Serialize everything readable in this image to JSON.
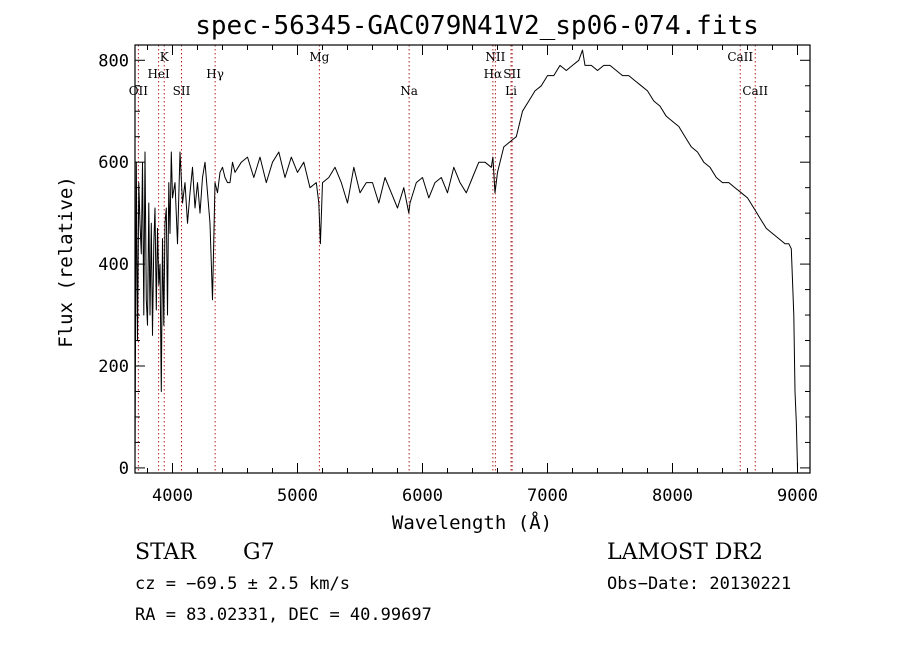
{
  "chart_data": {
    "type": "line",
    "title": "spec-56345-GAC079N41V2_sp06-074.fits",
    "xlabel": "Wavelength (Å)",
    "ylabel": "Flux (relative)",
    "xlim": [
      3700,
      9100
    ],
    "ylim": [
      -10,
      830
    ],
    "xticks": [
      4000,
      5000,
      6000,
      7000,
      8000,
      9000
    ],
    "yticks": [
      0,
      200,
      400,
      600,
      800
    ],
    "xtick_labels": [
      "4000",
      "5000",
      "6000",
      "7000",
      "8000",
      "9000"
    ],
    "ytick_labels": [
      "0",
      "200",
      "400",
      "600",
      "800"
    ],
    "grid": false,
    "series": [
      {
        "x": [
          3700,
          3710,
          3720,
          3730,
          3740,
          3750,
          3760,
          3770,
          3780,
          3790,
          3800,
          3810,
          3820,
          3830,
          3840,
          3850,
          3860,
          3870,
          3880,
          3890,
          3900,
          3910,
          3920,
          3930,
          3940,
          3950,
          3960,
          3970,
          3980,
          3990,
          4000,
          4020,
          4040,
          4060,
          4080,
          4100,
          4120,
          4140,
          4160,
          4180,
          4200,
          4220,
          4240,
          4260,
          4280,
          4300,
          4320,
          4340,
          4360,
          4380,
          4400,
          4420,
          4440,
          4460,
          4480,
          4500,
          4550,
          4600,
          4650,
          4700,
          4750,
          4800,
          4850,
          4900,
          4950,
          5000,
          5050,
          5100,
          5150,
          5170,
          5183,
          5200,
          5250,
          5300,
          5350,
          5400,
          5450,
          5500,
          5550,
          5600,
          5650,
          5700,
          5750,
          5800,
          5850,
          5890,
          5900,
          5950,
          6000,
          6050,
          6100,
          6150,
          6200,
          6250,
          6300,
          6350,
          6400,
          6450,
          6500,
          6550,
          6563,
          6580,
          6600,
          6650,
          6700,
          6750,
          6800,
          6850,
          6900,
          6950,
          7000,
          7050,
          7100,
          7150,
          7200,
          7250,
          7280,
          7300,
          7350,
          7400,
          7450,
          7500,
          7550,
          7600,
          7650,
          7700,
          7750,
          7800,
          7850,
          7900,
          7950,
          8000,
          8050,
          8100,
          8150,
          8200,
          8250,
          8300,
          8350,
          8400,
          8450,
          8500,
          8550,
          8600,
          8650,
          8700,
          8750,
          8800,
          8850,
          8900,
          8930,
          8950,
          8970,
          8980,
          8990,
          9000
        ],
        "y": [
          10,
          600,
          250,
          560,
          480,
          420,
          600,
          300,
          620,
          330,
          280,
          520,
          300,
          480,
          260,
          440,
          510,
          310,
          470,
          360,
          400,
          150,
          450,
          280,
          480,
          510,
          300,
          560,
          460,
          620,
          530,
          560,
          440,
          620,
          520,
          560,
          480,
          540,
          590,
          510,
          560,
          500,
          570,
          600,
          540,
          480,
          330,
          560,
          540,
          580,
          590,
          570,
          560,
          560,
          600,
          580,
          600,
          610,
          570,
          610,
          560,
          600,
          620,
          570,
          610,
          580,
          600,
          550,
          560,
          520,
          440,
          560,
          570,
          590,
          560,
          520,
          590,
          540,
          560,
          560,
          520,
          570,
          540,
          510,
          550,
          500,
          520,
          560,
          570,
          530,
          560,
          570,
          540,
          590,
          560,
          540,
          570,
          600,
          600,
          590,
          610,
          540,
          580,
          630,
          640,
          650,
          700,
          720,
          740,
          750,
          770,
          770,
          790,
          780,
          790,
          800,
          820,
          790,
          790,
          780,
          790,
          790,
          780,
          770,
          770,
          760,
          750,
          740,
          720,
          710,
          690,
          680,
          670,
          650,
          630,
          620,
          600,
          590,
          570,
          560,
          560,
          550,
          540,
          530,
          510,
          490,
          470,
          460,
          450,
          440,
          440,
          430,
          300,
          150,
          90,
          0
        ]
      }
    ],
    "lines": [
      {
        "label": "OII",
        "x": 3727,
        "row": 3
      },
      {
        "label": "K",
        "x": 3934,
        "row": 1
      },
      {
        "label": "HeI",
        "x": 3889,
        "row": 2
      },
      {
        "label": "SII",
        "x": 4072,
        "row": 3
      },
      {
        "label": "Hγ",
        "x": 4341,
        "row": 2
      },
      {
        "label": "Mg",
        "x": 5175,
        "row": 1
      },
      {
        "label": "Na",
        "x": 5893,
        "row": 3
      },
      {
        "label": "NII",
        "x": 6583,
        "row": 1
      },
      {
        "label": "Hα",
        "x": 6563,
        "row": 2
      },
      {
        "label": "SII",
        "x": 6717,
        "row": 2
      },
      {
        "label": "Li",
        "x": 6708,
        "row": 3
      },
      {
        "label": "CaII",
        "x": 8542,
        "row": 1
      },
      {
        "label": "CaII",
        "x": 8662,
        "row": 3
      }
    ]
  },
  "info": {
    "object_class": "STAR",
    "subclass": "G7",
    "survey": "LAMOST DR2",
    "cz": "cz = −69.5 ± 2.5 km/s",
    "obs_date": "Obs−Date: 20130221",
    "coords": "RA =  83.02331, DEC =  40.99697"
  }
}
